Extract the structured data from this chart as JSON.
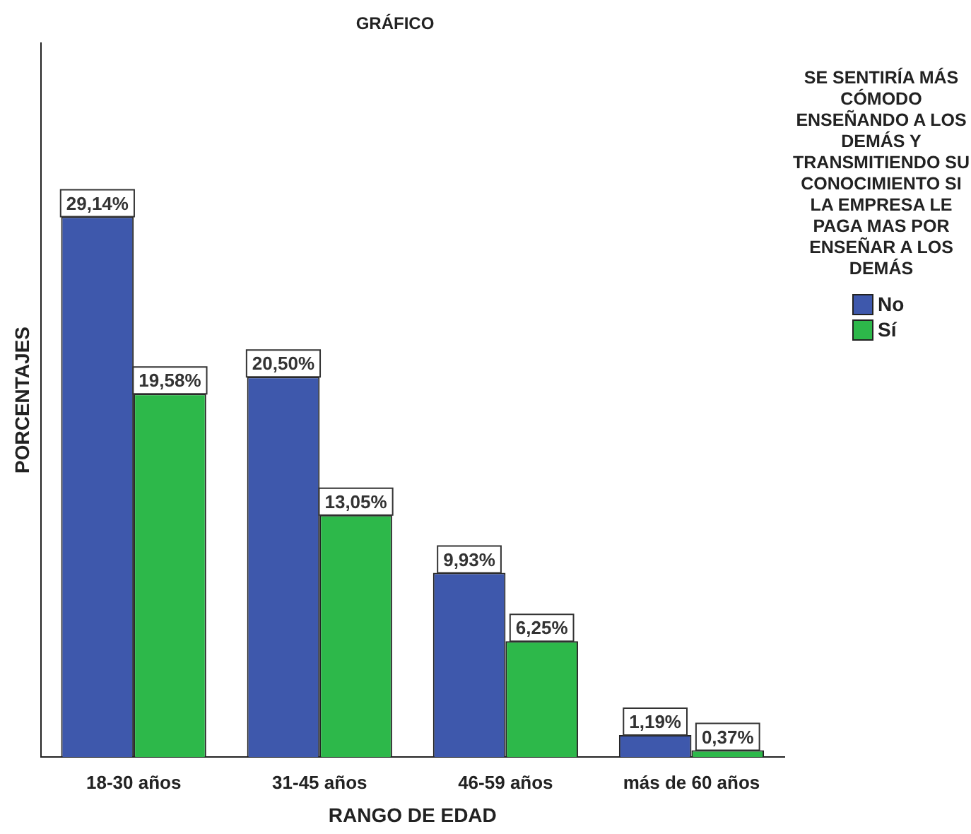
{
  "chart_data": {
    "type": "bar",
    "title": "GRÁFICO",
    "xlabel": "RANGO DE EDAD",
    "ylabel": "PORCENTAJES",
    "legend_title": "SE SENTIRÍA MÁS CÓMODO ENSEÑANDO A LOS DEMÁS Y TRANSMITIENDO SU CONOCIMIENTO SI LA EMPRESA LE PAGA MAS POR ENSEÑAR A LOS DEMÁS",
    "legend": "right",
    "tick_labels": "x",
    "grid": false,
    "categories": [
      "18-30 años",
      "31-45 años",
      "46-59 años",
      "más de 60 años"
    ],
    "ylim": [
      0,
      38.5
    ],
    "series": [
      {
        "name": "No",
        "color": "#3e58ac",
        "values": [
          29.14,
          20.5,
          9.93,
          1.19
        ],
        "value_labels": [
          "29,14%",
          "20,50%",
          "9,93%",
          "1,19%"
        ]
      },
      {
        "name": "Sí",
        "color": "#2db84a",
        "values": [
          19.58,
          13.05,
          6.25,
          0.37
        ],
        "value_labels": [
          "19,58%",
          "13,05%",
          "6,25%",
          "0,37%"
        ]
      }
    ]
  }
}
